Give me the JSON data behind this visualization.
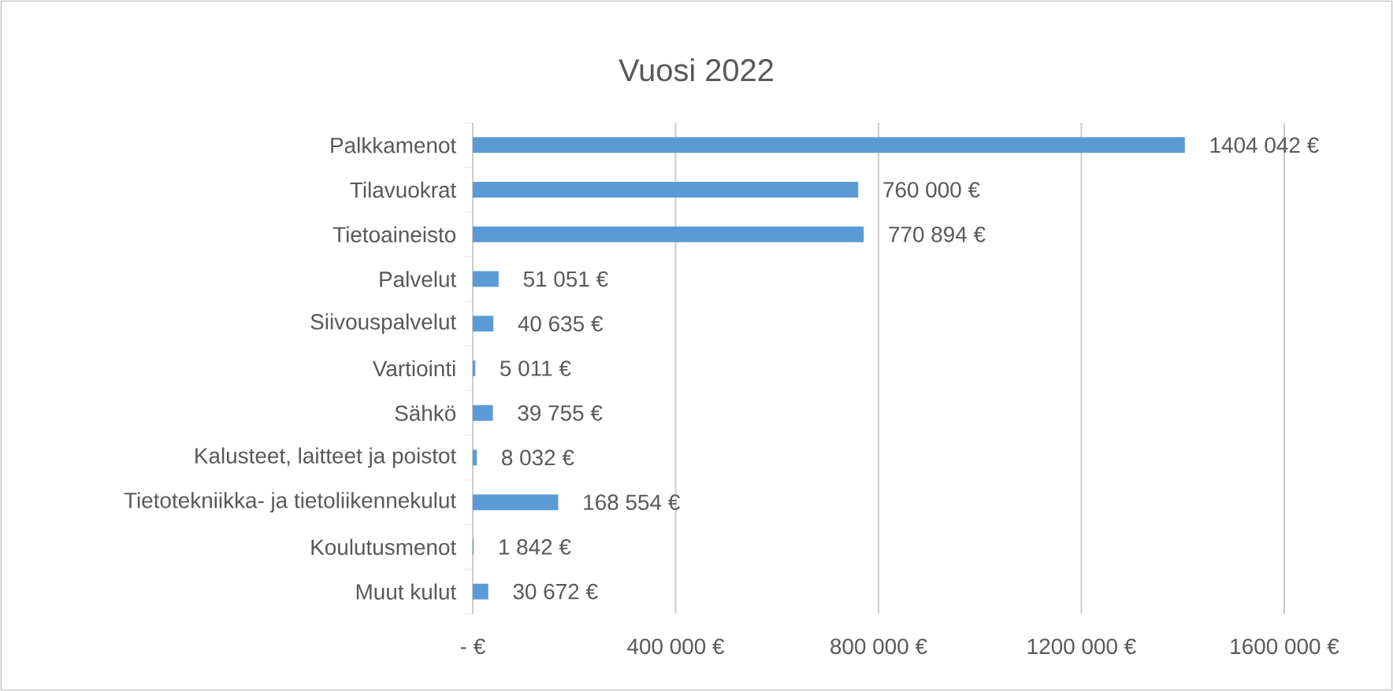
{
  "chart_data": {
    "type": "bar",
    "orientation": "horizontal",
    "title": "Vuosi 2022",
    "categories": [
      "Palkkamenot",
      "Tilavuokrat",
      "Tietoaineisto",
      "Palvelut",
      "Siivouspalvelut",
      "Vartiointi",
      "Sähkö",
      "Kalusteet, laitteet ja poistot",
      "Tietotekniikka- ja tietoliikennekulut",
      "Koulutusmenot",
      "Muut kulut"
    ],
    "values": [
      1404042,
      760000,
      770894,
      51051,
      40635,
      5011,
      39755,
      8032,
      168554,
      1842,
      30672
    ],
    "value_labels": [
      "1404 042 €",
      "760 000 €",
      "770 894 €",
      "51 051 €",
      "40 635 €",
      "5 011 €",
      "39 755 €",
      "8 032 €",
      "168 554 €",
      "1 842 €",
      "30 672 €"
    ],
    "color": "#5b9bd5",
    "xlim": [
      0,
      1600000
    ],
    "xticks": [
      {
        "value": 0,
        "label": "- €"
      },
      {
        "value": 400000,
        "label": "400 000 €"
      },
      {
        "value": 800000,
        "label": "800 000 €"
      },
      {
        "value": 1200000,
        "label": "1200 000 €"
      },
      {
        "value": 1600000,
        "label": "1600 000 €"
      }
    ],
    "grid": "x"
  }
}
